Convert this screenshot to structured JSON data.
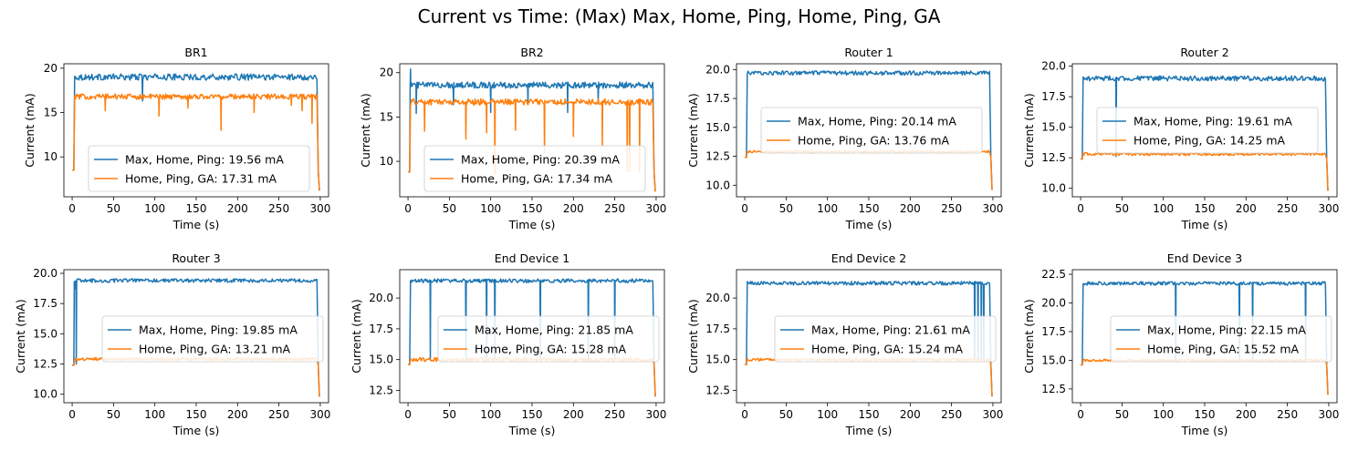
{
  "figure": {
    "title": "Current vs Time: (Max) Max, Home, Ping, Home, Ping, GA"
  },
  "colors": {
    "series_a": "#1f77b4",
    "series_b": "#ff7f0e"
  },
  "chart_data": [
    {
      "type": "line",
      "title": "BR1",
      "xlabel": "Time (s)",
      "ylabel": "Current (mA)",
      "xlim": [
        -10,
        310
      ],
      "ylim": [
        5.5,
        20.5
      ],
      "xticks": [
        0,
        50,
        100,
        150,
        200,
        250,
        300
      ],
      "yticks": [
        10,
        15,
        20
      ],
      "legend_loc": "lower-center",
      "series": [
        {
          "name": "Max, Home, Ping: 19.56 mA",
          "start": 8.5,
          "plateau": 19.0,
          "noise": 0.35,
          "end": 6.2,
          "dips": [
            [
              85,
              16.3
            ]
          ]
        },
        {
          "name": "Home, Ping, GA: 17.31 mA",
          "start": 8.5,
          "plateau": 16.8,
          "noise": 0.3,
          "end": 6.2,
          "dips": [
            [
              40,
              15.2
            ],
            [
              105,
              14.6
            ],
            [
              140,
              15.5
            ],
            [
              180,
              13.0
            ],
            [
              220,
              15.0
            ],
            [
              265,
              15.8
            ],
            [
              278,
              15.2
            ],
            [
              290,
              13.8
            ]
          ]
        }
      ]
    },
    {
      "type": "line",
      "title": "BR2",
      "xlabel": "Time (s)",
      "ylabel": "Current (mA)",
      "xlim": [
        -10,
        310
      ],
      "ylim": [
        6.0,
        21.0
      ],
      "xticks": [
        0,
        50,
        100,
        150,
        200,
        250,
        300
      ],
      "yticks": [
        10,
        15,
        20
      ],
      "legend_loc": "lower-center",
      "series": [
        {
          "name": "Max, Home, Ping: 20.39 mA",
          "start": 8.8,
          "plateau": 18.6,
          "noise": 0.35,
          "end": 6.6,
          "dips": [
            [
              3,
              20.4
            ],
            [
              10,
              15.4
            ],
            [
              55,
              16.4
            ],
            [
              100,
              15.5
            ],
            [
              145,
              16.4
            ],
            [
              193,
              15.5
            ],
            [
              230,
              16.8
            ]
          ]
        },
        {
          "name": "Home, Ping, GA: 17.34 mA",
          "start": 8.8,
          "plateau": 16.7,
          "noise": 0.35,
          "end": 6.6,
          "dips": [
            [
              20,
              13.4
            ],
            [
              70,
              12.5
            ],
            [
              95,
              13.2
            ],
            [
              105,
              8.5
            ],
            [
              130,
              13.5
            ],
            [
              165,
              11.0
            ],
            [
              200,
              12.8
            ],
            [
              235,
              11.8
            ],
            [
              265,
              8.8
            ],
            [
              268,
              8.8
            ],
            [
              280,
              8.8
            ]
          ]
        }
      ]
    },
    {
      "type": "line",
      "title": "Router 1",
      "xlabel": "Time (s)",
      "ylabel": "Current (mA)",
      "xlim": [
        -10,
        310
      ],
      "ylim": [
        9.0,
        20.5
      ],
      "xticks": [
        0,
        50,
        100,
        150,
        200,
        250,
        300
      ],
      "yticks": [
        10.0,
        12.5,
        15.0,
        17.5,
        20.0
      ],
      "legend_loc": "center",
      "series": [
        {
          "name": "Max, Home, Ping: 20.14 mA",
          "start": 12.4,
          "plateau": 19.7,
          "noise": 0.18,
          "end": 9.6,
          "dips": []
        },
        {
          "name": "Home, Ping, GA: 13.76 mA",
          "start": 12.4,
          "plateau": 12.9,
          "noise": 0.1,
          "end": 9.6,
          "dips": []
        }
      ]
    },
    {
      "type": "line",
      "title": "Router 2",
      "xlabel": "Time (s)",
      "ylabel": "Current (mA)",
      "xlim": [
        -10,
        310
      ],
      "ylim": [
        9.3,
        20.2
      ],
      "xticks": [
        0,
        50,
        100,
        150,
        200,
        250,
        300
      ],
      "yticks": [
        10.0,
        12.5,
        15.0,
        17.5,
        20.0
      ],
      "legend_loc": "center",
      "series": [
        {
          "name": "Max, Home, Ping: 19.61 mA",
          "start": 12.4,
          "plateau": 19.0,
          "noise": 0.2,
          "end": 9.8,
          "dips": [
            [
              43,
              12.6
            ]
          ]
        },
        {
          "name": "Home, Ping, GA: 14.25 mA",
          "start": 12.4,
          "plateau": 12.8,
          "noise": 0.12,
          "end": 9.8,
          "dips": []
        }
      ]
    },
    {
      "type": "line",
      "title": "Router 3",
      "xlabel": "Time (s)",
      "ylabel": "Current (mA)",
      "xlim": [
        -10,
        310
      ],
      "ylim": [
        9.3,
        20.3
      ],
      "xticks": [
        0,
        50,
        100,
        150,
        200,
        250,
        300
      ],
      "yticks": [
        10.0,
        12.5,
        15.0,
        17.5,
        20.0
      ],
      "legend_loc": "center-right",
      "series": [
        {
          "name": "Max, Home, Ping: 19.85 mA",
          "start": 12.4,
          "plateau": 19.4,
          "noise": 0.15,
          "end": 9.8,
          "dips": [
            [
              3,
              18.7
            ],
            [
              5,
              12.5
            ]
          ]
        },
        {
          "name": "Home, Ping, GA: 13.21 mA",
          "start": 12.4,
          "plateau": 12.9,
          "noise": 0.12,
          "end": 9.8,
          "dips": []
        }
      ]
    },
    {
      "type": "line",
      "title": "End Device 1",
      "xlabel": "Time (s)",
      "ylabel": "Current (mA)",
      "xlim": [
        -10,
        310
      ],
      "ylim": [
        11.5,
        22.3
      ],
      "xticks": [
        0,
        50,
        100,
        150,
        200,
        250,
        300
      ],
      "yticks": [
        12.5,
        15.0,
        17.5,
        20.0
      ],
      "legend_loc": "center-right",
      "series": [
        {
          "name": "Max, Home, Ping: 21.85 mA",
          "start": 14.6,
          "plateau": 21.4,
          "noise": 0.15,
          "end": 12.0,
          "dips": [
            [
              27,
              15.0
            ],
            [
              70,
              15.0
            ],
            [
              95,
              15.0
            ],
            [
              105,
              15.0
            ],
            [
              160,
              15.0
            ],
            [
              218,
              15.0
            ],
            [
              250,
              15.0
            ]
          ]
        },
        {
          "name": "Home, Ping, GA: 15.28 mA",
          "start": 14.6,
          "plateau": 15.0,
          "noise": 0.15,
          "end": 12.0,
          "dips": []
        }
      ]
    },
    {
      "type": "line",
      "title": "End Device 2",
      "xlabel": "Time (s)",
      "ylabel": "Current (mA)",
      "xlim": [
        -10,
        310
      ],
      "ylim": [
        11.5,
        22.3
      ],
      "xticks": [
        0,
        50,
        100,
        150,
        200,
        250,
        300
      ],
      "yticks": [
        12.5,
        15.0,
        17.5,
        20.0
      ],
      "legend_loc": "center-right",
      "series": [
        {
          "name": "Max, Home, Ping: 21.61 mA",
          "start": 14.6,
          "plateau": 21.2,
          "noise": 0.15,
          "end": 12.0,
          "dips": [
            [
              278,
              15.0
            ],
            [
              282,
              15.0
            ],
            [
              286,
              15.0
            ],
            [
              289,
              15.0
            ]
          ]
        },
        {
          "name": "Home, Ping, GA: 15.24 mA",
          "start": 14.6,
          "plateau": 15.0,
          "noise": 0.1,
          "end": 12.0,
          "dips": []
        }
      ]
    },
    {
      "type": "line",
      "title": "End Device 3",
      "xlabel": "Time (s)",
      "ylabel": "Current (mA)",
      "xlim": [
        -10,
        310
      ],
      "ylim": [
        11.3,
        22.9
      ],
      "xticks": [
        0,
        50,
        100,
        150,
        200,
        250,
        300
      ],
      "yticks": [
        12.5,
        15.0,
        17.5,
        20.0,
        22.5
      ],
      "legend_loc": "center-right",
      "series": [
        {
          "name": "Max, Home, Ping: 22.15 mA",
          "start": 14.6,
          "plateau": 21.7,
          "noise": 0.15,
          "end": 12.0,
          "dips": [
            [
              115,
              15.0
            ],
            [
              192,
              15.0
            ],
            [
              208,
              15.0
            ],
            [
              272,
              15.0
            ]
          ]
        },
        {
          "name": "Home, Ping, GA: 15.52 mA",
          "start": 14.6,
          "plateau": 15.0,
          "noise": 0.1,
          "end": 12.0,
          "dips": []
        }
      ]
    }
  ]
}
